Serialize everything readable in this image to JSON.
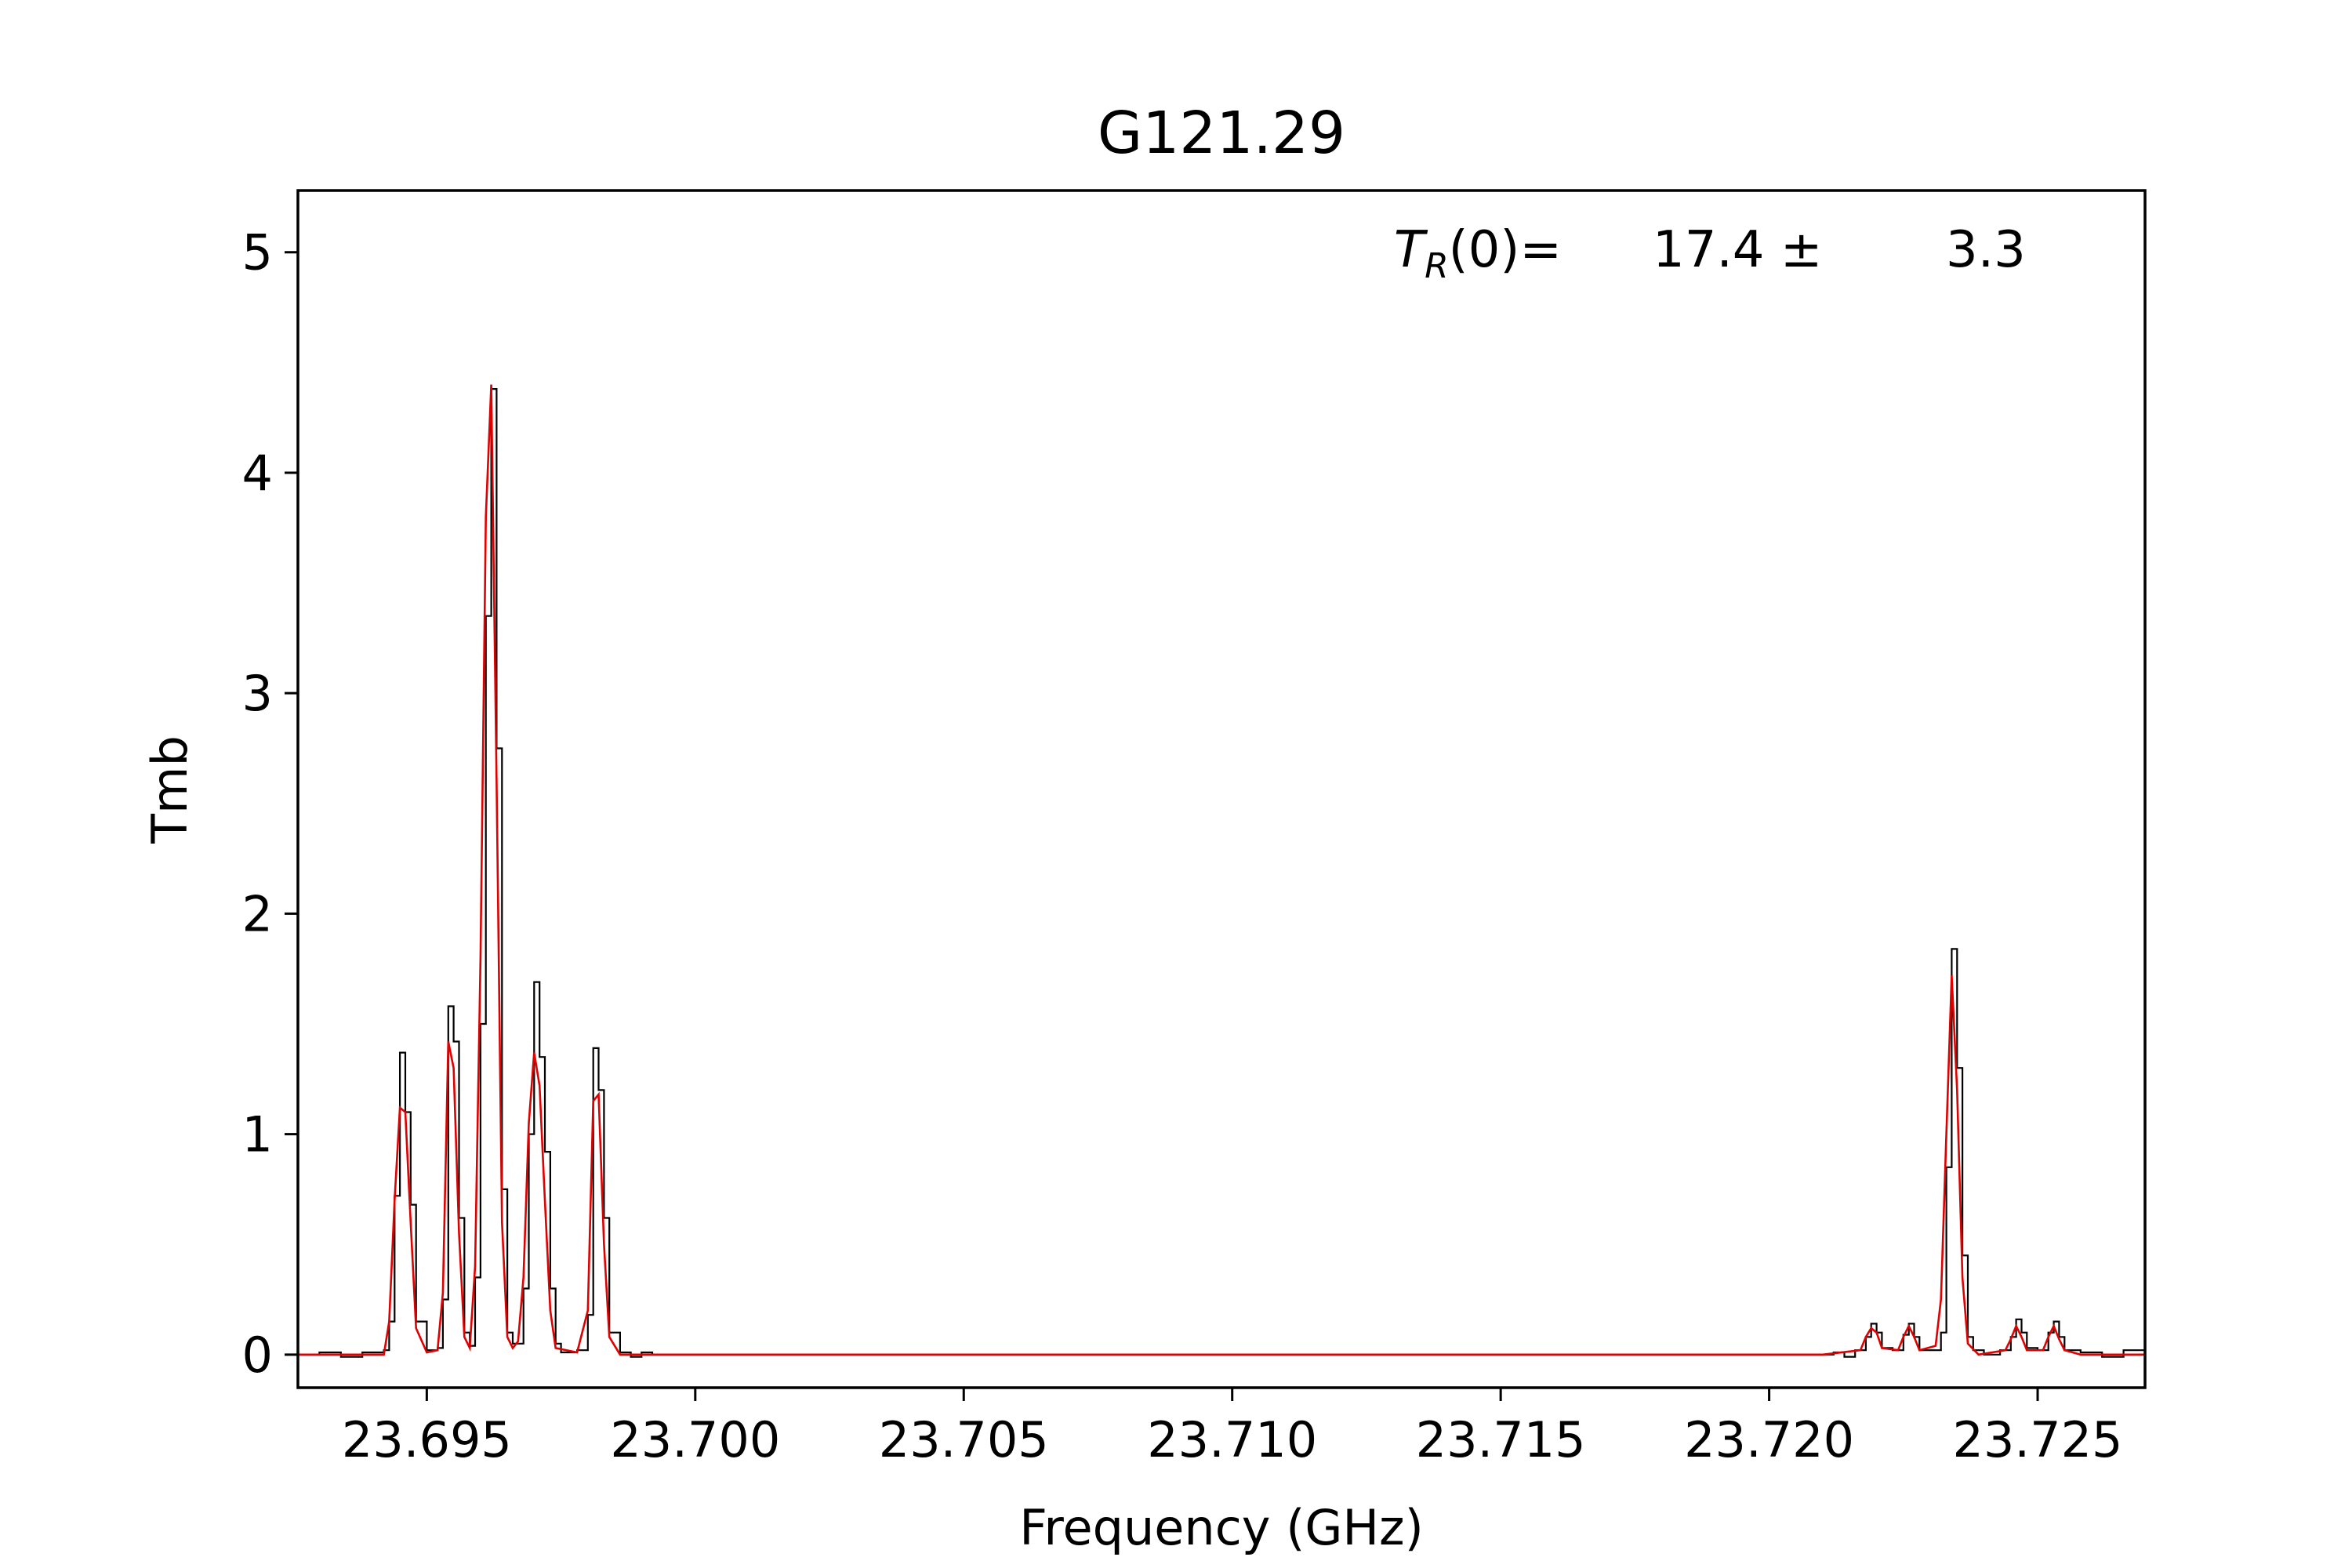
{
  "chart_data": {
    "type": "line",
    "title": "G121.29",
    "xlabel": "Frequency (GHz)",
    "ylabel": "Tmb",
    "xlim": [
      23.6926,
      23.727
    ],
    "ylim": [
      -0.15,
      5.28
    ],
    "xticks": [
      23.695,
      23.7,
      23.705,
      23.71,
      23.715,
      23.72,
      23.725
    ],
    "xtick_labels": [
      "23.695",
      "23.700",
      "23.705",
      "23.710",
      "23.715",
      "23.720",
      "23.725"
    ],
    "yticks": [
      0,
      1,
      2,
      3,
      4,
      5
    ],
    "ytick_labels": [
      "0",
      "1",
      "2",
      "3",
      "4",
      "5"
    ],
    "grid": false,
    "annotation": {
      "label_symbol": "T",
      "label_sub": "R",
      "label_rest": "(0)=",
      "value": "17.4 ±",
      "error": "3.3"
    },
    "series": [
      {
        "role": "observed",
        "style": "step",
        "color": "#000000",
        "points": [
          [
            23.6926,
            0.0
          ],
          [
            23.693,
            0.01
          ],
          [
            23.6934,
            -0.01
          ],
          [
            23.6938,
            0.01
          ],
          [
            23.6942,
            0.02
          ],
          [
            23.6943,
            0.15
          ],
          [
            23.6944,
            0.72
          ],
          [
            23.6945,
            1.37
          ],
          [
            23.6946,
            1.1
          ],
          [
            23.6947,
            0.68
          ],
          [
            23.6948,
            0.15
          ],
          [
            23.695,
            0.02
          ],
          [
            23.6952,
            0.03
          ],
          [
            23.6953,
            0.25
          ],
          [
            23.6954,
            1.58
          ],
          [
            23.6955,
            1.42
          ],
          [
            23.6956,
            0.62
          ],
          [
            23.6957,
            0.1
          ],
          [
            23.6958,
            0.04
          ],
          [
            23.6959,
            0.35
          ],
          [
            23.696,
            1.5
          ],
          [
            23.6961,
            3.35
          ],
          [
            23.6962,
            4.38
          ],
          [
            23.6963,
            2.75
          ],
          [
            23.6964,
            0.75
          ],
          [
            23.6965,
            0.1
          ],
          [
            23.6966,
            0.05
          ],
          [
            23.6967,
            0.05
          ],
          [
            23.6968,
            0.3
          ],
          [
            23.6969,
            1.0
          ],
          [
            23.697,
            1.69
          ],
          [
            23.6971,
            1.35
          ],
          [
            23.6972,
            0.92
          ],
          [
            23.6973,
            0.3
          ],
          [
            23.6974,
            0.05
          ],
          [
            23.6975,
            0.01
          ],
          [
            23.6978,
            0.02
          ],
          [
            23.698,
            0.18
          ],
          [
            23.6981,
            1.39
          ],
          [
            23.6982,
            1.2
          ],
          [
            23.6983,
            0.62
          ],
          [
            23.6984,
            0.1
          ],
          [
            23.6986,
            0.01
          ],
          [
            23.6988,
            -0.01
          ],
          [
            23.699,
            0.01
          ],
          [
            23.6992,
            0.0
          ],
          [
            23.6994,
            0.0
          ],
          [
            23.721,
            0.0
          ],
          [
            23.7212,
            0.01
          ],
          [
            23.7214,
            -0.01
          ],
          [
            23.7216,
            0.02
          ],
          [
            23.7218,
            0.08
          ],
          [
            23.7219,
            0.14
          ],
          [
            23.722,
            0.1
          ],
          [
            23.7221,
            0.03
          ],
          [
            23.7223,
            0.02
          ],
          [
            23.7225,
            0.09
          ],
          [
            23.7226,
            0.14
          ],
          [
            23.7227,
            0.08
          ],
          [
            23.7228,
            0.02
          ],
          [
            23.723,
            0.02
          ],
          [
            23.7232,
            0.1
          ],
          [
            23.7233,
            0.85
          ],
          [
            23.7234,
            1.84
          ],
          [
            23.7235,
            1.3
          ],
          [
            23.7236,
            0.45
          ],
          [
            23.7237,
            0.08
          ],
          [
            23.7238,
            0.02
          ],
          [
            23.724,
            0.0
          ],
          [
            23.7243,
            0.02
          ],
          [
            23.7245,
            0.08
          ],
          [
            23.7246,
            0.16
          ],
          [
            23.7247,
            0.1
          ],
          [
            23.7248,
            0.03
          ],
          [
            23.725,
            0.02
          ],
          [
            23.7252,
            0.1
          ],
          [
            23.7253,
            0.15
          ],
          [
            23.7254,
            0.08
          ],
          [
            23.7255,
            0.02
          ],
          [
            23.7258,
            0.01
          ],
          [
            23.7262,
            -0.01
          ],
          [
            23.7266,
            0.02
          ],
          [
            23.727,
            0.01
          ]
        ]
      },
      {
        "role": "fit",
        "style": "line",
        "color": "#e00000",
        "points": [
          [
            23.6926,
            0.0
          ],
          [
            23.6942,
            0.0
          ],
          [
            23.6943,
            0.15
          ],
          [
            23.6944,
            0.7
          ],
          [
            23.6945,
            1.12
          ],
          [
            23.6946,
            1.1
          ],
          [
            23.6947,
            0.6
          ],
          [
            23.6948,
            0.12
          ],
          [
            23.695,
            0.01
          ],
          [
            23.6952,
            0.02
          ],
          [
            23.6953,
            0.28
          ],
          [
            23.6954,
            1.42
          ],
          [
            23.6955,
            1.3
          ],
          [
            23.6956,
            0.55
          ],
          [
            23.6957,
            0.08
          ],
          [
            23.6958,
            0.03
          ],
          [
            23.6959,
            0.4
          ],
          [
            23.696,
            1.8
          ],
          [
            23.6961,
            3.8
          ],
          [
            23.6962,
            4.4
          ],
          [
            23.6963,
            2.6
          ],
          [
            23.6964,
            0.6
          ],
          [
            23.6965,
            0.08
          ],
          [
            23.6966,
            0.03
          ],
          [
            23.6967,
            0.06
          ],
          [
            23.6968,
            0.35
          ],
          [
            23.6969,
            1.05
          ],
          [
            23.697,
            1.37
          ],
          [
            23.6971,
            1.22
          ],
          [
            23.6972,
            0.7
          ],
          [
            23.6973,
            0.2
          ],
          [
            23.6974,
            0.03
          ],
          [
            23.6978,
            0.01
          ],
          [
            23.698,
            0.2
          ],
          [
            23.6981,
            1.15
          ],
          [
            23.6982,
            1.18
          ],
          [
            23.6983,
            0.5
          ],
          [
            23.6984,
            0.08
          ],
          [
            23.6986,
            0.0
          ],
          [
            23.6994,
            0.0
          ],
          [
            23.721,
            0.0
          ],
          [
            23.7217,
            0.02
          ],
          [
            23.7218,
            0.08
          ],
          [
            23.7219,
            0.12
          ],
          [
            23.722,
            0.1
          ],
          [
            23.7221,
            0.03
          ],
          [
            23.7224,
            0.02
          ],
          [
            23.7225,
            0.08
          ],
          [
            23.7226,
            0.13
          ],
          [
            23.7227,
            0.08
          ],
          [
            23.7228,
            0.02
          ],
          [
            23.7231,
            0.04
          ],
          [
            23.7232,
            0.25
          ],
          [
            23.7233,
            1.0
          ],
          [
            23.7234,
            1.72
          ],
          [
            23.7235,
            1.2
          ],
          [
            23.7236,
            0.35
          ],
          [
            23.7237,
            0.05
          ],
          [
            23.7239,
            0.0
          ],
          [
            23.7244,
            0.02
          ],
          [
            23.7245,
            0.07
          ],
          [
            23.7246,
            0.13
          ],
          [
            23.7247,
            0.08
          ],
          [
            23.7248,
            0.02
          ],
          [
            23.7251,
            0.02
          ],
          [
            23.7252,
            0.08
          ],
          [
            23.7253,
            0.13
          ],
          [
            23.7254,
            0.07
          ],
          [
            23.7255,
            0.02
          ],
          [
            23.7258,
            0.0
          ],
          [
            23.727,
            0.0
          ]
        ]
      }
    ]
  }
}
